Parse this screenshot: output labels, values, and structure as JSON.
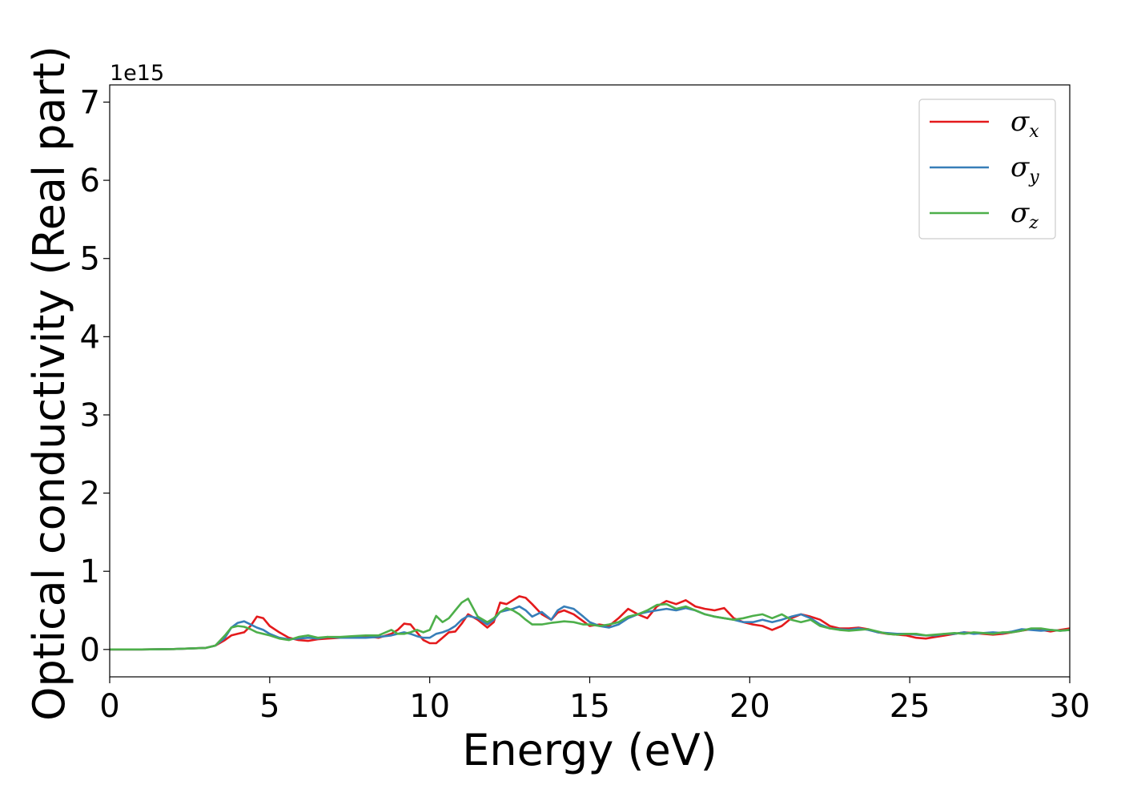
{
  "chart_data": {
    "type": "line",
    "xlabel": "Energy (eV)",
    "ylabel": "Optical conductivity (Real part)",
    "y_offset_label": "1e15",
    "xlim": [
      0,
      30
    ],
    "ylim": [
      -0.35,
      7.22
    ],
    "xticks": [
      0,
      5,
      10,
      15,
      20,
      25,
      30
    ],
    "yticks": [
      0,
      1,
      2,
      3,
      4,
      5,
      6,
      7
    ],
    "grid": false,
    "legend_position": "top-right",
    "series": [
      {
        "name": "σx",
        "symbol": "σ",
        "sub": "x",
        "color": "#e41a1c",
        "x": [
          0,
          1,
          2,
          3,
          3.3,
          3.6,
          3.8,
          4.0,
          4.2,
          4.4,
          4.6,
          4.8,
          5.0,
          5.3,
          5.6,
          5.9,
          6.2,
          6.5,
          6.8,
          7.2,
          7.6,
          8.0,
          8.4,
          8.8,
          9.0,
          9.2,
          9.4,
          9.6,
          9.8,
          10.0,
          10.2,
          10.4,
          10.6,
          10.8,
          11.0,
          11.2,
          11.5,
          11.8,
          12.0,
          12.2,
          12.4,
          12.6,
          12.8,
          13.0,
          13.2,
          13.5,
          13.8,
          14.0,
          14.2,
          14.5,
          14.8,
          15.0,
          15.3,
          15.6,
          15.9,
          16.2,
          16.5,
          16.8,
          17.1,
          17.4,
          17.7,
          18.0,
          18.3,
          18.6,
          18.9,
          19.2,
          19.5,
          19.8,
          20.1,
          20.4,
          20.7,
          21.0,
          21.3,
          21.6,
          21.9,
          22.2,
          22.5,
          22.8,
          23.1,
          23.4,
          23.7,
          24.0,
          24.3,
          24.6,
          24.9,
          25.2,
          25.5,
          25.8,
          26.1,
          26.4,
          26.7,
          27.0,
          27.3,
          27.6,
          27.9,
          28.2,
          28.5,
          28.8,
          29.1,
          29.4,
          29.7,
          30.0
        ],
        "y": [
          0,
          0,
          0.005,
          0.02,
          0.05,
          0.12,
          0.18,
          0.2,
          0.22,
          0.3,
          0.42,
          0.4,
          0.3,
          0.22,
          0.15,
          0.12,
          0.11,
          0.13,
          0.14,
          0.15,
          0.16,
          0.17,
          0.15,
          0.2,
          0.25,
          0.33,
          0.32,
          0.22,
          0.12,
          0.08,
          0.08,
          0.15,
          0.22,
          0.23,
          0.33,
          0.45,
          0.38,
          0.28,
          0.35,
          0.6,
          0.58,
          0.63,
          0.68,
          0.66,
          0.58,
          0.45,
          0.38,
          0.47,
          0.5,
          0.45,
          0.36,
          0.3,
          0.32,
          0.3,
          0.4,
          0.52,
          0.45,
          0.4,
          0.55,
          0.62,
          0.58,
          0.63,
          0.55,
          0.52,
          0.5,
          0.53,
          0.4,
          0.35,
          0.32,
          0.3,
          0.25,
          0.3,
          0.4,
          0.45,
          0.42,
          0.38,
          0.3,
          0.27,
          0.27,
          0.28,
          0.26,
          0.22,
          0.2,
          0.19,
          0.18,
          0.15,
          0.14,
          0.16,
          0.18,
          0.2,
          0.22,
          0.21,
          0.2,
          0.19,
          0.2,
          0.22,
          0.24,
          0.26,
          0.25,
          0.23,
          0.25,
          0.27
        ]
      },
      {
        "name": "σy",
        "symbol": "σ",
        "sub": "y",
        "color": "#377eb8",
        "x": [
          0,
          1,
          2,
          3,
          3.3,
          3.6,
          3.8,
          4.0,
          4.2,
          4.4,
          4.6,
          4.8,
          5.0,
          5.3,
          5.6,
          5.9,
          6.2,
          6.5,
          6.8,
          7.2,
          7.6,
          8.0,
          8.4,
          8.8,
          9.0,
          9.2,
          9.4,
          9.6,
          9.8,
          10.0,
          10.2,
          10.4,
          10.6,
          10.8,
          11.0,
          11.2,
          11.5,
          11.8,
          12.0,
          12.2,
          12.4,
          12.6,
          12.8,
          13.0,
          13.2,
          13.5,
          13.8,
          14.0,
          14.2,
          14.5,
          14.8,
          15.0,
          15.3,
          15.6,
          15.9,
          16.2,
          16.5,
          16.8,
          17.1,
          17.4,
          17.7,
          18.0,
          18.3,
          18.6,
          18.9,
          19.2,
          19.5,
          19.8,
          20.1,
          20.4,
          20.7,
          21.0,
          21.3,
          21.6,
          21.9,
          22.2,
          22.5,
          22.8,
          23.1,
          23.4,
          23.7,
          24.0,
          24.3,
          24.6,
          24.9,
          25.2,
          25.5,
          25.8,
          26.1,
          26.4,
          26.7,
          27.0,
          27.3,
          27.6,
          27.9,
          28.2,
          28.5,
          28.8,
          29.1,
          29.4,
          29.7,
          30.0
        ],
        "y": [
          0,
          0,
          0.005,
          0.02,
          0.05,
          0.15,
          0.28,
          0.34,
          0.36,
          0.32,
          0.28,
          0.25,
          0.2,
          0.15,
          0.13,
          0.14,
          0.15,
          0.14,
          0.16,
          0.15,
          0.15,
          0.15,
          0.16,
          0.18,
          0.2,
          0.22,
          0.2,
          0.17,
          0.15,
          0.15,
          0.2,
          0.22,
          0.25,
          0.3,
          0.38,
          0.43,
          0.4,
          0.32,
          0.38,
          0.48,
          0.5,
          0.52,
          0.55,
          0.5,
          0.42,
          0.48,
          0.38,
          0.5,
          0.55,
          0.52,
          0.42,
          0.35,
          0.3,
          0.28,
          0.32,
          0.4,
          0.45,
          0.48,
          0.5,
          0.52,
          0.5,
          0.53,
          0.5,
          0.45,
          0.42,
          0.4,
          0.38,
          0.35,
          0.35,
          0.38,
          0.35,
          0.38,
          0.42,
          0.45,
          0.4,
          0.32,
          0.27,
          0.26,
          0.25,
          0.27,
          0.25,
          0.22,
          0.21,
          0.2,
          0.2,
          0.19,
          0.18,
          0.18,
          0.2,
          0.2,
          0.22,
          0.2,
          0.21,
          0.22,
          0.21,
          0.23,
          0.26,
          0.25,
          0.24,
          0.25,
          0.24,
          0.25
        ]
      },
      {
        "name": "σz",
        "symbol": "σ",
        "sub": "z",
        "color": "#4daf4a",
        "x": [
          0,
          1,
          2,
          3,
          3.3,
          3.6,
          3.8,
          4.0,
          4.2,
          4.4,
          4.6,
          4.8,
          5.0,
          5.3,
          5.6,
          5.9,
          6.2,
          6.5,
          6.8,
          7.2,
          7.6,
          8.0,
          8.4,
          8.8,
          9.0,
          9.2,
          9.4,
          9.6,
          9.8,
          10.0,
          10.2,
          10.4,
          10.6,
          10.8,
          11.0,
          11.2,
          11.5,
          11.8,
          12.0,
          12.2,
          12.4,
          12.6,
          12.8,
          13.0,
          13.2,
          13.5,
          13.8,
          14.0,
          14.2,
          14.5,
          14.8,
          15.0,
          15.3,
          15.6,
          15.9,
          16.2,
          16.5,
          16.8,
          17.1,
          17.4,
          17.7,
          18.0,
          18.3,
          18.6,
          18.9,
          19.2,
          19.5,
          19.8,
          20.1,
          20.4,
          20.7,
          21.0,
          21.3,
          21.6,
          21.9,
          22.2,
          22.5,
          22.8,
          23.1,
          23.4,
          23.7,
          24.0,
          24.3,
          24.6,
          24.9,
          25.2,
          25.5,
          25.8,
          26.1,
          26.4,
          26.7,
          27.0,
          27.3,
          27.6,
          27.9,
          28.2,
          28.5,
          28.8,
          29.1,
          29.4,
          29.7,
          30.0
        ],
        "y": [
          0,
          0,
          0.005,
          0.02,
          0.05,
          0.18,
          0.28,
          0.3,
          0.29,
          0.26,
          0.22,
          0.2,
          0.18,
          0.14,
          0.12,
          0.16,
          0.18,
          0.15,
          0.16,
          0.16,
          0.17,
          0.18,
          0.18,
          0.25,
          0.2,
          0.2,
          0.22,
          0.25,
          0.22,
          0.25,
          0.43,
          0.35,
          0.4,
          0.5,
          0.6,
          0.65,
          0.42,
          0.35,
          0.4,
          0.48,
          0.53,
          0.5,
          0.45,
          0.38,
          0.32,
          0.32,
          0.34,
          0.35,
          0.36,
          0.35,
          0.32,
          0.32,
          0.3,
          0.32,
          0.35,
          0.42,
          0.45,
          0.5,
          0.57,
          0.58,
          0.52,
          0.55,
          0.5,
          0.45,
          0.42,
          0.4,
          0.38,
          0.4,
          0.43,
          0.45,
          0.4,
          0.45,
          0.38,
          0.35,
          0.38,
          0.3,
          0.27,
          0.25,
          0.24,
          0.25,
          0.26,
          0.23,
          0.2,
          0.19,
          0.2,
          0.2,
          0.18,
          0.19,
          0.2,
          0.21,
          0.2,
          0.22,
          0.21,
          0.2,
          0.22,
          0.22,
          0.24,
          0.27,
          0.27,
          0.25,
          0.24,
          0.25
        ]
      }
    ]
  }
}
